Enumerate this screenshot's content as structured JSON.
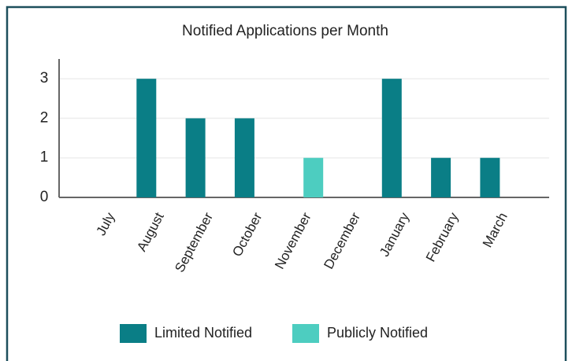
{
  "chart_data": {
    "type": "bar",
    "title": "Notified Applications per Month",
    "categories": [
      "July",
      "August",
      "September",
      "October",
      "November",
      "December",
      "January",
      "February",
      "March"
    ],
    "series": [
      {
        "name": "Limited Notified",
        "color": "#0a7e86",
        "values": [
          0,
          3,
          2,
          2,
          0,
          0,
          3,
          1,
          1
        ]
      },
      {
        "name": "Publicly Notified",
        "color": "#4dcdc0",
        "values": [
          0,
          0,
          0,
          0,
          1,
          0,
          0,
          0,
          0
        ]
      }
    ],
    "ylim": [
      0,
      3.5
    ],
    "yticks": [
      0,
      1,
      2,
      3
    ],
    "grid": true,
    "legend": "bottom"
  }
}
